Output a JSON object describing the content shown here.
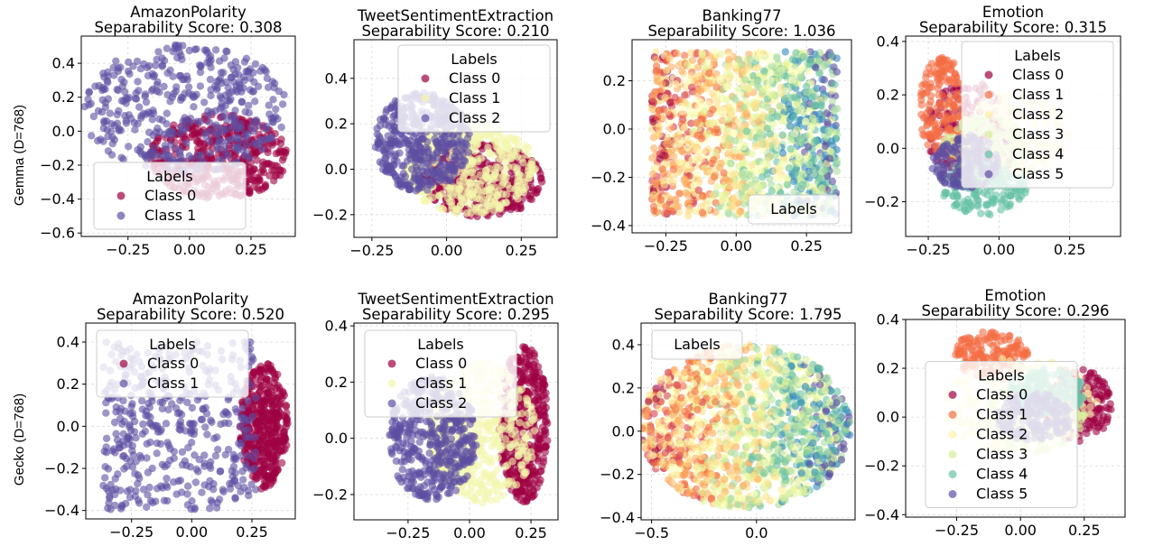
{
  "colors": {
    "class_palette_2": [
      "#9e0142",
      "#5e4fa2"
    ],
    "class_palette_3": [
      "#9e0142",
      "#f3f7ab",
      "#5e4fa2"
    ],
    "class_palette_6": [
      "#9e0142",
      "#f46d43",
      "#fef2aa",
      "#d6ee9b",
      "#66c2a5",
      "#5e4fa2"
    ],
    "spectral_77": [
      "#9e0142",
      "#d53e4f",
      "#f46d43",
      "#fdae61",
      "#fee08b",
      "#ffffbf",
      "#e6f598",
      "#abdda4",
      "#66c2a5",
      "#3288bd",
      "#5e4fa2"
    ],
    "grid": "#d9d9d9",
    "legend_bg": "#ffffff"
  },
  "legend_title": "Labels",
  "row_labels": [
    "Gemma (D=768)",
    "Gecko (D=768)"
  ],
  "chart_data": [
    {
      "type": "scatter",
      "row": 0,
      "col": 0,
      "title": "AmazonPolarity",
      "subtitle": "Separability Score: 0.308",
      "xlim": [
        -0.44,
        0.43
      ],
      "ylim": [
        -0.62,
        0.56
      ],
      "xticks": [
        -0.25,
        0.0,
        0.25
      ],
      "xtick_labels": [
        "−0.25",
        "0.00",
        "0.25"
      ],
      "yticks": [
        -0.6,
        -0.4,
        -0.2,
        0.0,
        0.2,
        0.4
      ],
      "ytick_labels": [
        "−0.6",
        "−0.4",
        "−0.2",
        "0.0",
        "0.2",
        "0.4"
      ],
      "grid": true,
      "legend_loc": "lower-left",
      "classes": [
        "Class 0",
        "Class 1"
      ],
      "palette": "class_palette_2",
      "series": [
        {
          "name": "Class 0",
          "cluster": {
            "shape": "ellipse",
            "cx": 0.12,
            "cy": -0.15,
            "rx": 0.28,
            "ry": 0.25
          }
        },
        {
          "name": "Class 1",
          "cluster": {
            "shape": "ellipse",
            "cx": -0.02,
            "cy": 0.13,
            "rx": 0.42,
            "ry": 0.38
          }
        }
      ]
    },
    {
      "type": "scatter",
      "row": 0,
      "col": 1,
      "title": "TweetSentimentExtraction",
      "subtitle": "Separability Score: 0.210",
      "xlim": [
        -0.31,
        0.37
      ],
      "ylim": [
        -0.3,
        0.57
      ],
      "xticks": [
        -0.25,
        0.0,
        0.25
      ],
      "xtick_labels": [
        "−0.25",
        "0.00",
        "0.25"
      ],
      "yticks": [
        -0.2,
        0.0,
        0.2,
        0.4
      ],
      "ytick_labels": [
        "−0.2",
        "0.0",
        "0.2",
        "0.4"
      ],
      "grid": true,
      "legend_loc": "upper-right",
      "classes": [
        "Class 0",
        "Class 1",
        "Class 2"
      ],
      "palette": "class_palette_3",
      "series": [
        {
          "name": "Class 0",
          "cluster": {
            "shape": "ellipse",
            "cx": 0.12,
            "cy": -0.05,
            "rx": 0.2,
            "ry": 0.16
          }
        },
        {
          "name": "Class 1",
          "cluster": {
            "shape": "ellipse",
            "cx": 0.08,
            "cy": 0.0,
            "rx": 0.22,
            "ry": 0.2
          }
        },
        {
          "name": "Class 2",
          "cluster": {
            "shape": "ellipse",
            "cx": -0.08,
            "cy": 0.12,
            "rx": 0.16,
            "ry": 0.22
          }
        }
      ]
    },
    {
      "type": "scatter",
      "row": 0,
      "col": 2,
      "title": "Banking77",
      "subtitle": "Separability Score: 1.036",
      "xlim": [
        -0.37,
        0.41
      ],
      "ylim": [
        -0.43,
        0.37
      ],
      "xticks": [
        -0.25,
        0.0,
        0.25
      ],
      "xtick_labels": [
        "−0.25",
        "0.00",
        "0.25"
      ],
      "yticks": [
        -0.4,
        -0.2,
        0.0,
        0.2
      ],
      "ytick_labels": [
        "−0.4",
        "−0.2",
        "0.0",
        "0.2"
      ],
      "grid": true,
      "legend_loc": "lower-right",
      "classes": [],
      "palette": "spectral_77",
      "n_classes": 77,
      "series": [
        {
          "name": "",
          "cluster": {
            "shape": "box",
            "cx": 0.03,
            "cy": -0.02,
            "rx": 0.33,
            "ry": 0.34
          }
        }
      ]
    },
    {
      "type": "scatter",
      "row": 0,
      "col": 3,
      "title": "Emotion",
      "subtitle": "Separability Score: 0.315",
      "xlim": [
        -0.33,
        0.43
      ],
      "ylim": [
        -0.33,
        0.42
      ],
      "xticks": [
        -0.25,
        0.0,
        0.25
      ],
      "xtick_labels": [
        "−0.25",
        "0.00",
        "0.25"
      ],
      "yticks": [
        -0.2,
        0.0,
        0.2,
        0.4
      ],
      "ytick_labels": [
        "−0.2",
        "0.0",
        "0.2",
        "0.4"
      ],
      "grid": true,
      "legend_loc": "upper-right",
      "classes": [
        "Class 0",
        "Class 1",
        "Class 2",
        "Class 3",
        "Class 4",
        "Class 5"
      ],
      "palette": "class_palette_6",
      "series": [
        {
          "name": "Class 0",
          "cluster": {
            "shape": "ellipse",
            "cx": -0.1,
            "cy": 0.05,
            "rx": 0.16,
            "ry": 0.2
          }
        },
        {
          "name": "Class 1",
          "cluster": {
            "shape": "ellipse",
            "cx": -0.2,
            "cy": 0.15,
            "rx": 0.08,
            "ry": 0.2
          }
        },
        {
          "name": "Class 2",
          "cluster": {
            "shape": "ellipse",
            "cx": 0.05,
            "cy": 0.05,
            "rx": 0.2,
            "ry": 0.16
          }
        },
        {
          "name": "Class 3",
          "cluster": {
            "shape": "ellipse",
            "cx": -0.05,
            "cy": 0.0,
            "rx": 0.15,
            "ry": 0.12
          }
        },
        {
          "name": "Class 4",
          "cluster": {
            "shape": "ellipse",
            "cx": -0.05,
            "cy": -0.15,
            "rx": 0.15,
            "ry": 0.1
          }
        },
        {
          "name": "Class 5",
          "cluster": {
            "shape": "ellipse",
            "cx": -0.12,
            "cy": -0.05,
            "rx": 0.12,
            "ry": 0.1
          }
        }
      ]
    },
    {
      "type": "scatter",
      "row": 1,
      "col": 0,
      "title": "AmazonPolarity",
      "subtitle": "Separability Score: 0.520",
      "xlim": [
        -0.44,
        0.43
      ],
      "ylim": [
        -0.44,
        0.49
      ],
      "xticks": [
        -0.25,
        0.0,
        0.25
      ],
      "xtick_labels": [
        "−0.25",
        "0.00",
        "0.25"
      ],
      "yticks": [
        -0.4,
        -0.2,
        0.0,
        0.2,
        0.4
      ],
      "ytick_labels": [
        "−0.4",
        "−0.2",
        "0.0",
        "0.2",
        "0.4"
      ],
      "grid": true,
      "legend_loc": "upper-left",
      "classes": [
        "Class 0",
        "Class 1"
      ],
      "palette": "class_palette_2",
      "series": [
        {
          "name": "Class 0",
          "cluster": {
            "shape": "ellipse",
            "cx": 0.3,
            "cy": 0.0,
            "rx": 0.1,
            "ry": 0.3
          }
        },
        {
          "name": "Class 1",
          "cluster": {
            "shape": "box",
            "cx": -0.05,
            "cy": 0.0,
            "rx": 0.32,
            "ry": 0.4
          }
        }
      ]
    },
    {
      "type": "scatter",
      "row": 1,
      "col": 1,
      "title": "TweetSentimentExtraction",
      "subtitle": "Separability Score: 0.295",
      "xlim": [
        -0.47,
        0.36
      ],
      "ylim": [
        -0.29,
        0.41
      ],
      "xticks": [
        -0.25,
        0.0,
        0.25
      ],
      "xtick_labels": [
        "−0.25",
        "0.00",
        "0.25"
      ],
      "yticks": [
        -0.2,
        0.0,
        0.2,
        0.4
      ],
      "ytick_labels": [
        "−0.2",
        "0.0",
        "0.2",
        "0.4"
      ],
      "grid": true,
      "legend_loc": "upper-left",
      "classes": [
        "Class 0",
        "Class 1",
        "Class 2"
      ],
      "palette": "class_palette_3",
      "series": [
        {
          "name": "Class 0",
          "cluster": {
            "shape": "ellipse",
            "cx": 0.22,
            "cy": 0.05,
            "rx": 0.1,
            "ry": 0.28
          }
        },
        {
          "name": "Class 1",
          "cluster": {
            "shape": "ellipse",
            "cx": 0.05,
            "cy": 0.02,
            "rx": 0.22,
            "ry": 0.25
          }
        },
        {
          "name": "Class 2",
          "cluster": {
            "shape": "ellipse",
            "cx": -0.15,
            "cy": 0.0,
            "rx": 0.18,
            "ry": 0.22
          }
        }
      ]
    },
    {
      "type": "scatter",
      "row": 1,
      "col": 2,
      "title": "Banking77",
      "subtitle": "Separability Score: 1.795",
      "xlim": [
        -0.55,
        0.47
      ],
      "ylim": [
        -0.41,
        0.5
      ],
      "xticks": [
        -0.5,
        0.0
      ],
      "xtick_labels": [
        "−0.5",
        "0.0"
      ],
      "yticks": [
        -0.4,
        -0.2,
        0.0,
        0.2,
        0.4
      ],
      "ytick_labels": [
        "−0.4",
        "−0.2",
        "0.0",
        "0.2",
        "0.4"
      ],
      "grid": true,
      "legend_loc": "upper-left",
      "classes": [],
      "palette": "spectral_77",
      "n_classes": 77,
      "series": [
        {
          "name": "",
          "cluster": {
            "shape": "ellipse",
            "cx": -0.05,
            "cy": 0.02,
            "rx": 0.5,
            "ry": 0.38
          }
        }
      ]
    },
    {
      "type": "scatter",
      "row": 1,
      "col": 3,
      "title": "Emotion",
      "subtitle": "Separability Score: 0.296",
      "xlim": [
        -0.45,
        0.41
      ],
      "ylim": [
        -0.41,
        0.4
      ],
      "xticks": [
        -0.25,
        0.0,
        0.25
      ],
      "xtick_labels": [
        "−0.25",
        "0.00",
        "0.25"
      ],
      "yticks": [
        -0.4,
        -0.2,
        0.0,
        0.2,
        0.4
      ],
      "ytick_labels": [
        "−0.4",
        "−0.2",
        "0.0",
        "0.2",
        "0.4"
      ],
      "grid": true,
      "legend_loc": "center-left",
      "classes": [
        "Class 0",
        "Class 1",
        "Class 2",
        "Class 3",
        "Class 4",
        "Class 5"
      ],
      "palette": "class_palette_6",
      "series": [
        {
          "name": "Class 0",
          "cluster": {
            "shape": "ellipse",
            "cx": 0.22,
            "cy": 0.05,
            "rx": 0.14,
            "ry": 0.15
          }
        },
        {
          "name": "Class 1",
          "cluster": {
            "shape": "ellipse",
            "cx": -0.12,
            "cy": 0.25,
            "rx": 0.15,
            "ry": 0.1
          }
        },
        {
          "name": "Class 2",
          "cluster": {
            "shape": "ellipse",
            "cx": 0.0,
            "cy": 0.05,
            "rx": 0.3,
            "ry": 0.2
          }
        },
        {
          "name": "Class 3",
          "cluster": {
            "shape": "ellipse",
            "cx": 0.05,
            "cy": 0.0,
            "rx": 0.2,
            "ry": 0.15
          }
        },
        {
          "name": "Class 4",
          "cluster": {
            "shape": "ellipse",
            "cx": 0.1,
            "cy": 0.1,
            "rx": 0.15,
            "ry": 0.1
          }
        },
        {
          "name": "Class 5",
          "cluster": {
            "shape": "ellipse",
            "cx": 0.05,
            "cy": 0.0,
            "rx": 0.15,
            "ry": 0.1
          }
        }
      ]
    }
  ]
}
